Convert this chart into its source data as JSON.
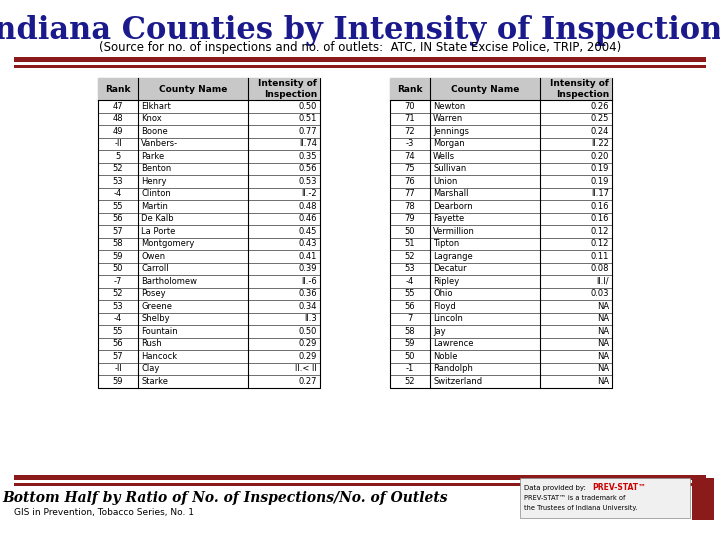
{
  "title": "Indiana Counties by Intensity of Inspections",
  "subtitle": "(Source for no. of inspections and no. of outlets:  ATC, IN State Excise Police, TRIP, 2004)",
  "footer_left": "Bottom Half by Ratio of No. of Inspections/No. of Outlets",
  "footer_sub": "GIS in Prevention, Tobacco Series, No. 1",
  "table1_headers": [
    "Rank",
    "County Name",
    "Intensity of\nInspection"
  ],
  "table1_data": [
    [
      "47",
      "Elkhart",
      "0.50"
    ],
    [
      "48",
      "Knox",
      "0.51"
    ],
    [
      "49",
      "Boone",
      "0.77"
    ],
    [
      "-ll",
      "Vanbers-",
      "ll.74"
    ],
    [
      "5",
      "Parke",
      "0.35"
    ],
    [
      "52",
      "Benton",
      "0.56"
    ],
    [
      "53",
      "Henry",
      "0.53"
    ],
    [
      "-4",
      "Clinton",
      "ll.-2"
    ],
    [
      "55",
      "Martin",
      "0.48"
    ],
    [
      "56",
      "De Kalb",
      "0.46"
    ],
    [
      "57",
      "La Porte",
      "0.45"
    ],
    [
      "58",
      "Montgomery",
      "0.43"
    ],
    [
      "59",
      "Owen",
      "0.41"
    ],
    [
      "50",
      "Carroll",
      "0.39"
    ],
    [
      "-7",
      "Bartholomew",
      "ll.-6"
    ],
    [
      "52",
      "Posey",
      "0.36"
    ],
    [
      "53",
      "Greene",
      "0.34"
    ],
    [
      "-4",
      "Shelby",
      "ll.3"
    ],
    [
      "55",
      "Fountain",
      "0.50"
    ],
    [
      "56",
      "Rush",
      "0.29"
    ],
    [
      "57",
      "Hancock",
      "0.29"
    ],
    [
      "-ll",
      "Clay",
      "ll.< ll"
    ],
    [
      "59",
      "Starke",
      "0.27"
    ]
  ],
  "table2_headers": [
    "Rank",
    "County Name",
    "Intensity of\nInspection"
  ],
  "table2_data": [
    [
      "70",
      "Newton",
      "0.26"
    ],
    [
      "71",
      "Warren",
      "0.25"
    ],
    [
      "72",
      "Jennings",
      "0.24"
    ],
    [
      "-3",
      "Morgan",
      "ll.22"
    ],
    [
      "74",
      "Wells",
      "0.20"
    ],
    [
      "75",
      "Sullivan",
      "0.19"
    ],
    [
      "76",
      "Union",
      "0.19"
    ],
    [
      "77",
      "Marshall",
      "ll.17"
    ],
    [
      "78",
      "Dearborn",
      "0.16"
    ],
    [
      "79",
      "Fayette",
      "0.16"
    ],
    [
      "50",
      "Vermillion",
      "0.12"
    ],
    [
      "51",
      "Tipton",
      "0.12"
    ],
    [
      "52",
      "Lagrange",
      "0.11"
    ],
    [
      "53",
      "Decatur",
      "0.08"
    ],
    [
      "-4",
      "Ripley",
      "ll.l/"
    ],
    [
      "55",
      "Ohio",
      "0.03"
    ],
    [
      "56",
      "Floyd",
      "NA"
    ],
    [
      "7",
      "Lincoln",
      "NA"
    ],
    [
      "58",
      "Jay",
      "NA"
    ],
    [
      "59",
      "Lawrence",
      "NA"
    ],
    [
      "50",
      "Noble",
      "NA"
    ],
    [
      "-1",
      "Randolph",
      "NA"
    ],
    [
      "52",
      "Switzerland",
      "NA"
    ]
  ],
  "title_color": "#1a1a8c",
  "subtitle_color": "#000000",
  "red_color": "#8b1a1a",
  "bg_color": "#ffffff",
  "table_header_bg": "#c8c8c8",
  "table_border_color": "#000000"
}
